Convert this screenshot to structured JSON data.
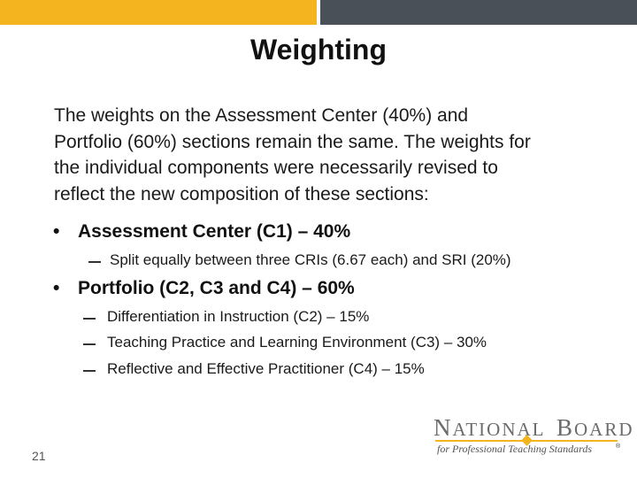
{
  "colors": {
    "gold": "#f3b41f",
    "gray": "#4a5057"
  },
  "slide": {
    "title": "Weighting",
    "intro_lines": [
      "The weights on the Assessment Center (40%) and",
      "Portfolio (60%) sections remain the same. The weights for",
      "the individual components were necessarily revised to",
      "reflect the new composition of these sections:"
    ],
    "bullets": [
      {
        "label": "Assessment Center (C1) – 40%",
        "subs": [
          "Split equally between three CRIs (6.67 each) and SRI (20%)"
        ]
      },
      {
        "label": "Portfolio (C2, C3 and C4) – 60%",
        "subs": [
          "Differentiation in Instruction (C2) – 15%",
          "Teaching Practice and Learning Environment (C3) – 30%",
          "Reflective and Effective Practitioner (C4) – 15%"
        ]
      }
    ],
    "bullet_glyph": "•",
    "page_number": "21"
  },
  "logo": {
    "n": "N",
    "ational": "ATIONAL",
    "b": "B",
    "oard": "OARD",
    "tagline": "for Professional Teaching Standards",
    "reg": "®"
  }
}
